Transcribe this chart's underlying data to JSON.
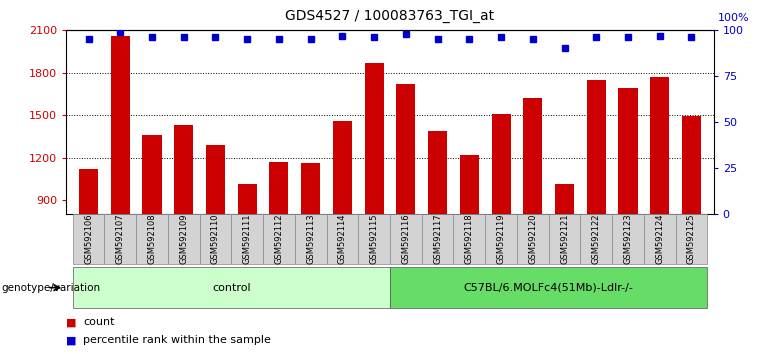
{
  "title": "GDS4527 / 100083763_TGI_at",
  "samples": [
    "GSM592106",
    "GSM592107",
    "GSM592108",
    "GSM592109",
    "GSM592110",
    "GSM592111",
    "GSM592112",
    "GSM592113",
    "GSM592114",
    "GSM592115",
    "GSM592116",
    "GSM592117",
    "GSM592118",
    "GSM592119",
    "GSM592120",
    "GSM592121",
    "GSM592122",
    "GSM592123",
    "GSM592124",
    "GSM592125"
  ],
  "counts": [
    1120,
    2060,
    1360,
    1430,
    1290,
    1010,
    1170,
    1160,
    1460,
    1870,
    1720,
    1390,
    1220,
    1510,
    1620,
    1010,
    1750,
    1690,
    1770,
    1490
  ],
  "percentiles": [
    95,
    99,
    96,
    96,
    96,
    95,
    95,
    95,
    97,
    96,
    98,
    95,
    95,
    96,
    95,
    90,
    96,
    96,
    97,
    96
  ],
  "groups": [
    {
      "label": "control",
      "start": 0,
      "end": 10,
      "color": "#ccffcc"
    },
    {
      "label": "C57BL/6.MOLFc4(51Mb)-Ldlr-/-",
      "start": 10,
      "end": 20,
      "color": "#66dd66"
    }
  ],
  "bar_color": "#cc0000",
  "dot_color": "#0000cc",
  "ylim_left": [
    800,
    2100
  ],
  "yticks_left": [
    900,
    1200,
    1500,
    1800,
    2100
  ],
  "ylim_right": [
    0,
    100
  ],
  "yticks_right": [
    0,
    25,
    50,
    75,
    100
  ],
  "grid_values": [
    1200,
    1500,
    1800
  ],
  "title_fontsize": 10,
  "genotype_label": "genotype/variation",
  "legend_count_label": "count",
  "legend_pct_label": "percentile rank within the sample"
}
